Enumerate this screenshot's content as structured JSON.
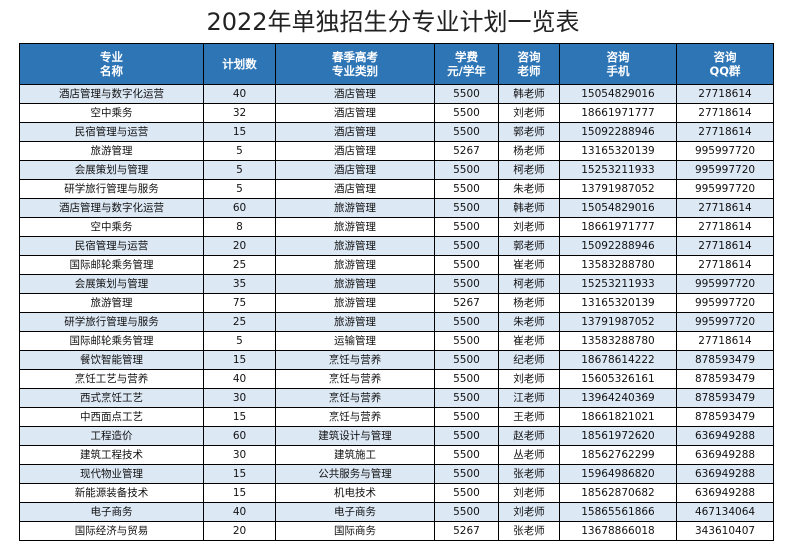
{
  "title": "2022年单独招生分专业计划一览表",
  "headers": [
    [
      "专业",
      "名称"
    ],
    [
      "计划数"
    ],
    [
      "春季高考",
      "专业类别"
    ],
    [
      "学费",
      "元/学年"
    ],
    [
      "咨询",
      "老师"
    ],
    [
      "咨询",
      "手机"
    ],
    [
      "咨询",
      "QQ群"
    ]
  ],
  "rows": [
    [
      "酒店管理与数字化运营",
      "40",
      "酒店管理",
      "5500",
      "韩老师",
      "15054829016",
      "27718614"
    ],
    [
      "空中乘务",
      "32",
      "酒店管理",
      "5500",
      "刘老师",
      "18661971777",
      "27718614"
    ],
    [
      "民宿管理与运营",
      "15",
      "酒店管理",
      "5500",
      "郭老师",
      "15092288946",
      "27718614"
    ],
    [
      "旅游管理",
      "5",
      "酒店管理",
      "5267",
      "杨老师",
      "13165320139",
      "995997720"
    ],
    [
      "会展策划与管理",
      "5",
      "酒店管理",
      "5500",
      "柯老师",
      "15253211933",
      "995997720"
    ],
    [
      "研学旅行管理与服务",
      "5",
      "酒店管理",
      "5500",
      "朱老师",
      "13791987052",
      "995997720"
    ],
    [
      "酒店管理与数字化运营",
      "60",
      "旅游管理",
      "5500",
      "韩老师",
      "15054829016",
      "27718614"
    ],
    [
      "空中乘务",
      "8",
      "旅游管理",
      "5500",
      "刘老师",
      "18661971777",
      "27718614"
    ],
    [
      "民宿管理与运营",
      "20",
      "旅游管理",
      "5500",
      "郭老师",
      "15092288946",
      "27718614"
    ],
    [
      "国际邮轮乘务管理",
      "25",
      "旅游管理",
      "5500",
      "崔老师",
      "13583288780",
      "27718614"
    ],
    [
      "会展策划与管理",
      "35",
      "旅游管理",
      "5500",
      "柯老师",
      "15253211933",
      "995997720"
    ],
    [
      "旅游管理",
      "75",
      "旅游管理",
      "5267",
      "杨老师",
      "13165320139",
      "995997720"
    ],
    [
      "研学旅行管理与服务",
      "25",
      "旅游管理",
      "5500",
      "朱老师",
      "13791987052",
      "995997720"
    ],
    [
      "国际邮轮乘务管理",
      "5",
      "运输管理",
      "5500",
      "崔老师",
      "13583288780",
      "27718614"
    ],
    [
      "餐饮智能管理",
      "15",
      "烹饪与营养",
      "5500",
      "纪老师",
      "18678614222",
      "878593479"
    ],
    [
      "烹饪工艺与营养",
      "40",
      "烹饪与营养",
      "5500",
      "刘老师",
      "15605326161",
      "878593479"
    ],
    [
      "西式烹饪工艺",
      "30",
      "烹饪与营养",
      "5500",
      "江老师",
      "13964240369",
      "878593479"
    ],
    [
      "中西面点工艺",
      "15",
      "烹饪与营养",
      "5500",
      "王老师",
      "18661821021",
      "878593479"
    ],
    [
      "工程造价",
      "60",
      "建筑设计与管理",
      "5500",
      "赵老师",
      "18561972620",
      "636949288"
    ],
    [
      "建筑工程技术",
      "30",
      "建筑施工",
      "5500",
      "丛老师",
      "18562762299",
      "636949288"
    ],
    [
      "现代物业管理",
      "15",
      "公共服务与管理",
      "5500",
      "张老师",
      "15964986820",
      "636949288"
    ],
    [
      "新能源装备技术",
      "15",
      "机电技术",
      "5500",
      "刘老师",
      "18562870682",
      "636949288"
    ],
    [
      "电子商务",
      "40",
      "电子商务",
      "5500",
      "刘老师",
      "15865561866",
      "467134064"
    ],
    [
      "国际经济与贸易",
      "20",
      "国际商务",
      "5267",
      "张老师",
      "13678866018",
      "343610407"
    ]
  ]
}
